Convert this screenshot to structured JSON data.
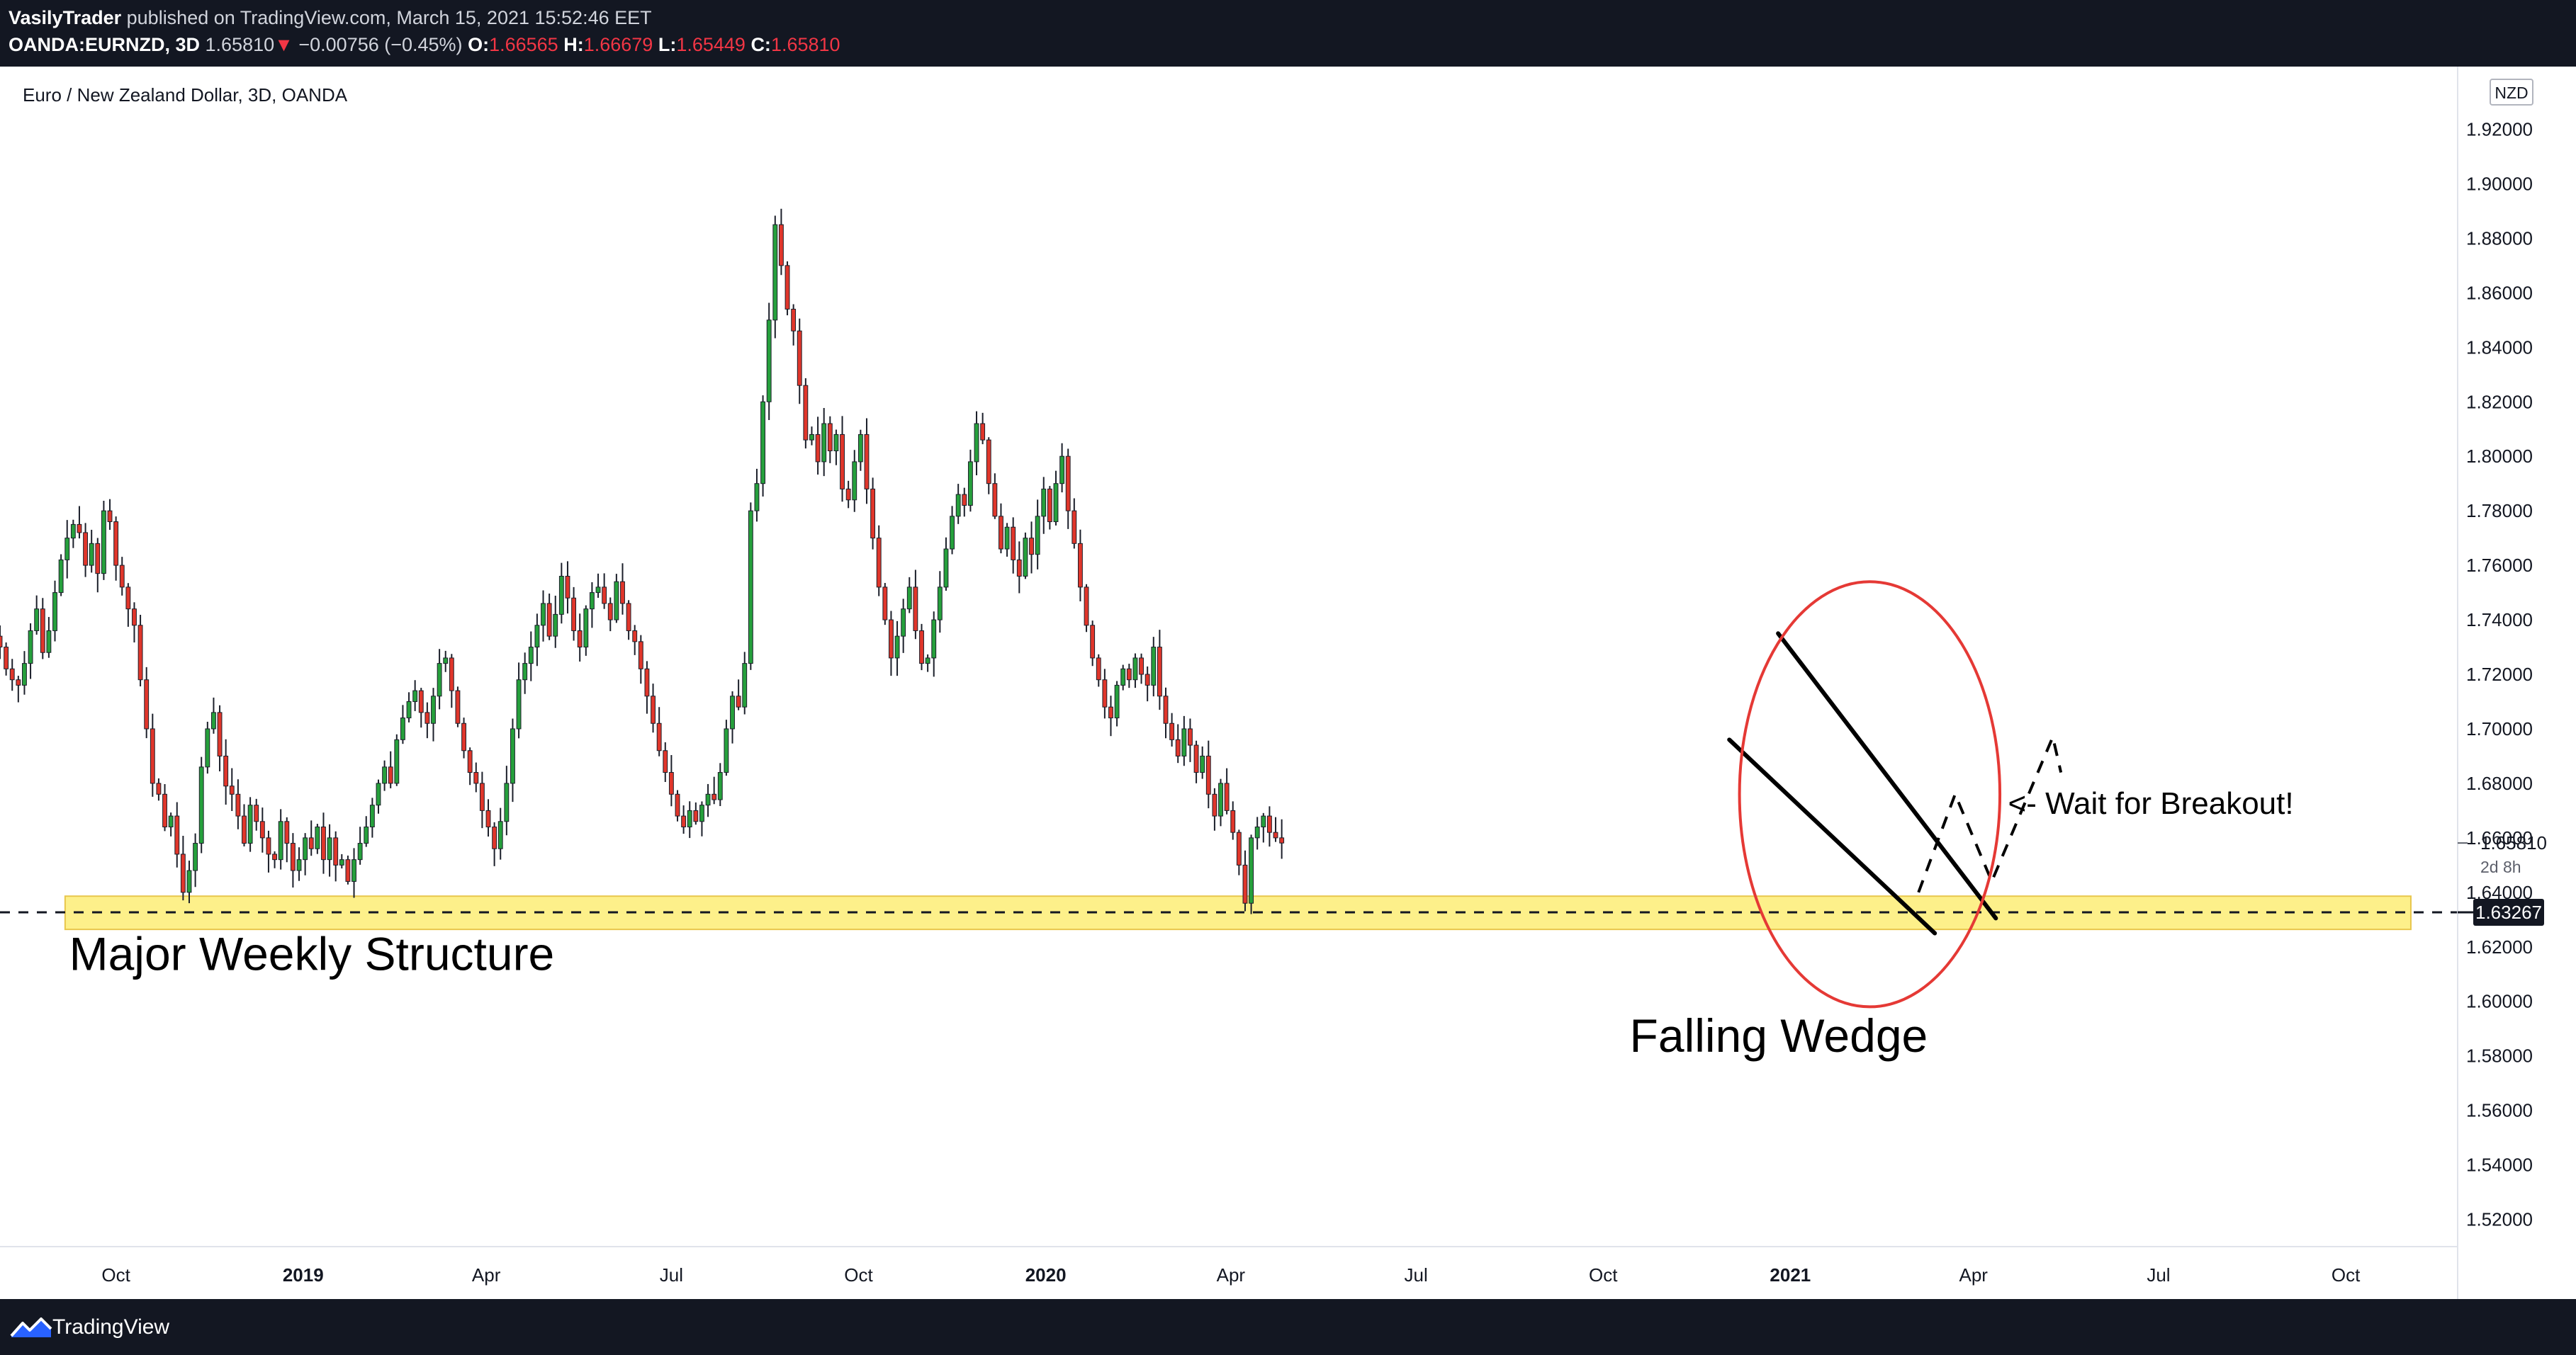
{
  "header": {
    "author": "VasilyTrader",
    "published_text": "published on TradingView.com, March 15, 2021 15:52:46 EET",
    "symbol": "OANDA:EURNZD, 3D",
    "last_price": "1.65810",
    "change_arrow": "▼",
    "change": "−0.00756 (−0.45%)",
    "open_label": "O:",
    "open": "1.66565",
    "high_label": "H:",
    "high": "1.66679",
    "low_label": "L:",
    "low": "1.65449",
    "close_label": "C:",
    "close": "1.65810"
  },
  "chart_title": "Euro / New Zealand Dollar, 3D, OANDA",
  "currency_badge": "NZD",
  "footer": {
    "brand": "TradingView",
    "logo_icon": "tradingview-logo-icon"
  },
  "colors": {
    "up": "#26a03c",
    "down": "#e0362b",
    "support_zone": "#fdf08a",
    "circle": "#e53935",
    "chrome": "#131722"
  },
  "chart_data": {
    "type": "candlestick",
    "title": "Euro / New Zealand Dollar, 3D, OANDA",
    "y_unit": "NZD",
    "ylim": [
      1.51,
      1.943
    ],
    "y_ticks": [
      "1.52000",
      "1.54000",
      "1.56000",
      "1.58000",
      "1.60000",
      "1.62000",
      "1.64000",
      "1.66000",
      "1.68000",
      "1.70000",
      "1.72000",
      "1.74000",
      "1.76000",
      "1.78000",
      "1.80000",
      "1.82000",
      "1.84000",
      "1.86000",
      "1.88000",
      "1.90000",
      "1.92000"
    ],
    "y_tick_values": [
      1.52,
      1.54,
      1.56,
      1.58,
      1.6,
      1.62,
      1.64,
      1.66,
      1.68,
      1.7,
      1.72,
      1.74,
      1.76,
      1.78,
      1.8,
      1.82,
      1.84,
      1.86,
      1.88,
      1.9,
      1.92
    ],
    "xlim": [
      "2018-08-05",
      "2021-11-25"
    ],
    "x_ticks": [
      {
        "date": "2018-10-01",
        "label": "Oct",
        "bold": false
      },
      {
        "date": "2019-01-01",
        "label": "2019",
        "bold": true
      },
      {
        "date": "2019-04-01",
        "label": "Apr",
        "bold": false
      },
      {
        "date": "2019-07-01",
        "label": "Jul",
        "bold": false
      },
      {
        "date": "2019-10-01",
        "label": "Oct",
        "bold": false
      },
      {
        "date": "2020-01-01",
        "label": "2020",
        "bold": true
      },
      {
        "date": "2020-04-01",
        "label": "Apr",
        "bold": false
      },
      {
        "date": "2020-07-01",
        "label": "Jul",
        "bold": false
      },
      {
        "date": "2020-10-01",
        "label": "Oct",
        "bold": false
      },
      {
        "date": "2021-01-01",
        "label": "2021",
        "bold": true
      },
      {
        "date": "2021-04-01",
        "label": "Apr",
        "bold": false
      },
      {
        "date": "2021-07-01",
        "label": "Jul",
        "bold": false
      },
      {
        "date": "2021-10-01",
        "label": "Oct",
        "bold": false
      }
    ],
    "series": [
      {
        "name": "EURNZD",
        "x_start": "2018-08-05",
        "x_step_days": 3,
        "close_path": [
          1.73,
          1.722,
          1.718,
          1.716,
          1.724,
          1.736,
          1.744,
          1.728,
          1.736,
          1.75,
          1.762,
          1.77,
          1.775,
          1.772,
          1.76,
          1.768,
          1.757,
          1.78,
          1.776,
          1.76,
          1.752,
          1.744,
          1.738,
          1.718,
          1.7,
          1.68,
          1.676,
          1.664,
          1.668,
          1.654,
          1.64,
          1.648,
          1.658,
          1.686,
          1.7,
          1.706,
          1.69,
          1.679,
          1.676,
          1.668,
          1.658,
          1.672,
          1.666,
          1.66,
          1.654,
          1.652,
          1.666,
          1.658,
          1.648,
          1.652,
          1.66,
          1.656,
          1.664,
          1.652,
          1.66,
          1.65,
          1.652,
          1.644,
          1.652,
          1.658,
          1.664,
          1.672,
          1.68,
          1.686,
          1.68,
          1.696,
          1.704,
          1.71,
          1.714,
          1.706,
          1.702,
          1.712,
          1.724,
          1.726,
          1.714,
          1.702,
          1.692,
          1.684,
          1.68,
          1.67,
          1.664,
          1.656,
          1.666,
          1.68,
          1.7,
          1.718,
          1.724,
          1.73,
          1.738,
          1.746,
          1.734,
          1.742,
          1.756,
          1.748,
          1.736,
          1.73,
          1.744,
          1.75,
          1.752,
          1.746,
          1.74,
          1.754,
          1.746,
          1.736,
          1.732,
          1.722,
          1.712,
          1.702,
          1.692,
          1.684,
          1.676,
          1.668,
          1.664,
          1.67,
          1.666,
          1.672,
          1.676,
          1.674,
          1.684,
          1.7,
          1.712,
          1.708,
          1.724,
          1.78,
          1.79,
          1.82,
          1.85,
          1.885,
          1.87,
          1.854,
          1.846,
          1.826,
          1.806,
          1.808,
          1.798,
          1.812,
          1.802,
          1.808,
          1.788,
          1.784,
          1.798,
          1.808,
          1.788,
          1.77,
          1.752,
          1.74,
          1.726,
          1.734,
          1.744,
          1.752,
          1.736,
          1.724,
          1.726,
          1.74,
          1.752,
          1.766,
          1.778,
          1.786,
          1.782,
          1.798,
          1.812,
          1.806,
          1.79,
          1.778,
          1.766,
          1.774,
          1.762,
          1.756,
          1.77,
          1.764,
          1.778,
          1.788,
          1.776,
          1.79,
          1.8,
          1.78,
          1.768,
          1.752,
          1.738,
          1.726,
          1.718,
          1.708,
          1.704,
          1.716,
          1.722,
          1.718,
          1.726,
          1.72,
          1.716,
          1.73,
          1.712,
          1.702,
          1.696,
          1.69,
          1.7,
          1.694,
          1.684,
          1.69,
          1.676,
          1.668,
          1.68,
          1.67,
          1.662,
          1.65,
          1.636,
          1.66,
          1.664,
          1.668,
          1.662,
          1.66,
          1.6581
        ]
      }
    ],
    "support_zone": {
      "from": 1.6264,
      "to": 1.6386
    },
    "horizontal_line": {
      "price": 1.63267,
      "label": "1.63267",
      "style": "dashed"
    },
    "current_price_label": {
      "price": 1.6581,
      "label": "1.65810",
      "countdown": "2d 8h"
    },
    "wedge": {
      "upper_line": [
        {
          "date": "2020-12-26",
          "price": 1.735
        },
        {
          "date": "2021-04-12",
          "price": 1.6305
        }
      ],
      "lower_line": [
        {
          "date": "2020-12-02",
          "price": 1.696
        },
        {
          "date": "2021-03-13",
          "price": 1.625
        }
      ]
    },
    "projection_path": [
      {
        "date": "2021-03-05",
        "price": 1.64
      },
      {
        "date": "2021-03-23",
        "price": 1.676
      },
      {
        "date": "2021-04-10",
        "price": 1.644
      },
      {
        "date": "2021-05-10",
        "price": 1.697
      },
      {
        "date": "2021-05-14",
        "price": 1.684
      }
    ],
    "circle": {
      "center_date": "2021-02-09",
      "center_price": 1.676,
      "radius_days": 64,
      "radius_price": 0.078
    },
    "annotations": [
      {
        "text": "Major Weekly Structure",
        "date": "2018-09-08",
        "price": 1.6115
      },
      {
        "text": "Falling Wedge",
        "date": "2020-10-14",
        "price": 1.5815
      },
      {
        "text": "<- Wait for Breakout!",
        "date": "2021-04-18",
        "price": 1.6688
      }
    ]
  }
}
